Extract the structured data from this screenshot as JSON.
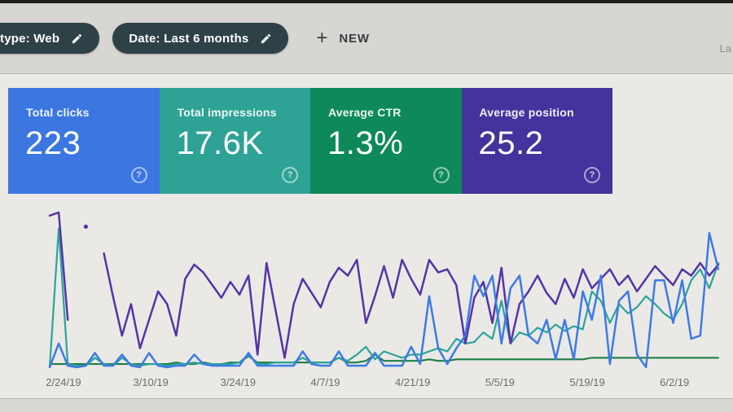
{
  "header": {
    "chips": [
      {
        "label": "type: Web"
      },
      {
        "label": "Date: Last 6 months"
      }
    ],
    "new_button": {
      "plus_glyph": "+",
      "label": "NEW"
    },
    "corner_fragment": "La",
    "chip_color": "#2e4147"
  },
  "icons": {
    "help_glyph": "?",
    "edit_icon": "pencil"
  },
  "cards": [
    {
      "label": "Total clicks",
      "value": "223",
      "color": "#3c76e1"
    },
    {
      "label": "Total impressions",
      "value": "17.6K",
      "color": "#2da295"
    },
    {
      "label": "Average CTR",
      "value": "1.3%",
      "color": "#0e8a5a"
    },
    {
      "label": "Average position",
      "value": "25.2",
      "color": "#43339c"
    }
  ],
  "chart_data": {
    "type": "line",
    "title": "",
    "xlabel": "",
    "ylabel": "",
    "ylim": [
      0,
      100
    ],
    "value_scale": "0-100 relative to plot height (no y-axis ticks visible on screen)",
    "grid": false,
    "legend_visible": false,
    "x_tick_labels": [
      "2/24/19",
      "3/10/19",
      "3/24/19",
      "4/7/19",
      "4/21/19",
      "5/5/19",
      "5/19/19",
      "6/2/19"
    ],
    "series": [
      {
        "id": "position",
        "name": "Average position",
        "color": "#1e7e44",
        "width": 2.1,
        "values": [
          2,
          2,
          2,
          2,
          2,
          2,
          2,
          2,
          2,
          2,
          2,
          2,
          2,
          2,
          3,
          2,
          2,
          3,
          2,
          2,
          3,
          3,
          7,
          3,
          3,
          3,
          3,
          3,
          3,
          3,
          3,
          3,
          6,
          3,
          3,
          4,
          8,
          4,
          4,
          4,
          4,
          4,
          5,
          4,
          4,
          5,
          5,
          5,
          5,
          5,
          5,
          5,
          5,
          5,
          5,
          5,
          5,
          5,
          5,
          5,
          6,
          6,
          6,
          6,
          6,
          6,
          6,
          6,
          6,
          6,
          6,
          6,
          6,
          6,
          6
        ]
      },
      {
        "id": "ctr",
        "name": "Average CTR",
        "color": "#2ba59b",
        "width": 2.2,
        "values": [
          0,
          88,
          2,
          1,
          1,
          6,
          2,
          1,
          6,
          2,
          1,
          2,
          2,
          1,
          2,
          2,
          3,
          2,
          2,
          2,
          2,
          3,
          8,
          2,
          2,
          3,
          3,
          3,
          6,
          3,
          3,
          3,
          6,
          4,
          8,
          13,
          5,
          10,
          8,
          6,
          8,
          8,
          10,
          12,
          10,
          18,
          15,
          16,
          22,
          18,
          42,
          15,
          22,
          20,
          25,
          22,
          27,
          23,
          26,
          24,
          48,
          42,
          28,
          40,
          34,
          38,
          45,
          40,
          34,
          30,
          40,
          55,
          62,
          50,
          66
        ]
      },
      {
        "id": "impressions",
        "name": "Total impressions",
        "color": "#5534a6",
        "width": 2.5,
        "values": [
          96,
          98,
          30,
          null,
          89,
          null,
          72,
          45,
          20,
          40,
          12,
          30,
          48,
          40,
          20,
          56,
          65,
          60,
          52,
          44,
          54,
          46,
          58,
          8,
          66,
          36,
          6,
          40,
          56,
          47,
          38,
          54,
          63,
          58,
          68,
          28,
          45,
          64,
          44,
          68,
          56,
          46,
          68,
          60,
          62,
          52,
          15,
          44,
          54,
          28,
          63,
          15,
          40,
          48,
          58,
          47,
          40,
          56,
          44,
          62,
          50,
          56,
          62,
          52,
          58,
          48,
          56,
          64,
          58,
          52,
          62,
          58,
          66,
          58,
          65
        ]
      },
      {
        "id": "clicks",
        "name": "Total clicks",
        "color": "#3d7be5",
        "width": 2.5,
        "values": [
          0,
          15,
          1,
          0,
          1,
          9,
          1,
          1,
          8,
          1,
          0,
          9,
          1,
          0,
          1,
          1,
          8,
          2,
          1,
          1,
          1,
          1,
          9,
          1,
          1,
          1,
          1,
          1,
          10,
          2,
          1,
          1,
          10,
          1,
          1,
          1,
          9,
          1,
          1,
          1,
          13,
          2,
          45,
          12,
          2,
          12,
          20,
          58,
          45,
          58,
          15,
          50,
          58,
          20,
          15,
          30,
          5,
          30,
          5,
          48,
          30,
          58,
          2,
          42,
          48,
          8,
          0,
          55,
          55,
          28,
          55,
          18,
          20,
          85,
          62
        ]
      }
    ]
  }
}
